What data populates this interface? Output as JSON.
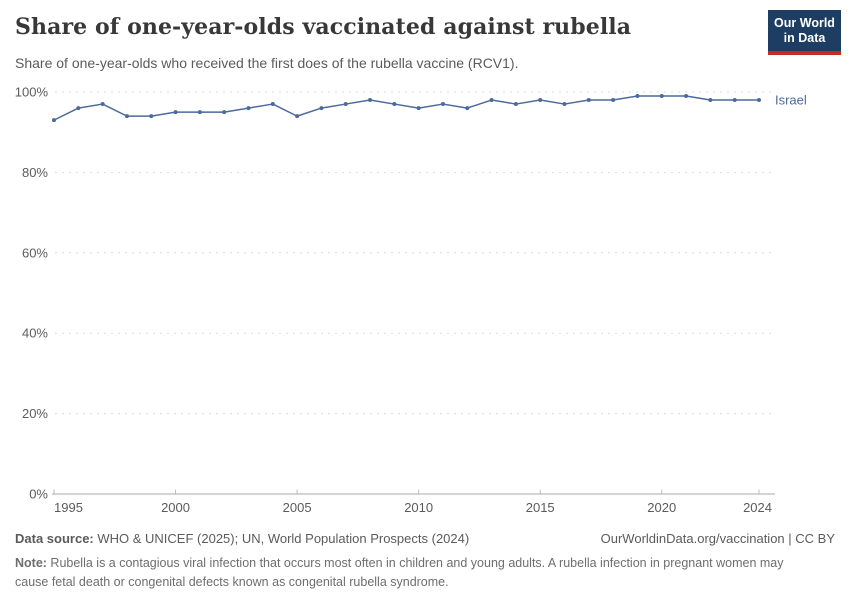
{
  "header": {
    "title": "Share of one-year-olds vaccinated against rubella",
    "subtitle": "Share of one-year-olds who received the first does of the rubella vaccine (RCV1).",
    "logo": {
      "line1": "Our World",
      "line2": "in Data"
    }
  },
  "chart_data": {
    "type": "line",
    "title": "Share of one-year-olds vaccinated against rubella",
    "x": [
      1995,
      1996,
      1997,
      1998,
      1999,
      2000,
      2001,
      2002,
      2003,
      2004,
      2005,
      2006,
      2007,
      2008,
      2009,
      2010,
      2011,
      2012,
      2013,
      2014,
      2015,
      2016,
      2017,
      2018,
      2019,
      2020,
      2021,
      2022,
      2023,
      2024
    ],
    "series": [
      {
        "name": "Israel",
        "color": "#4C6A9C",
        "values": [
          93,
          96,
          97,
          94,
          94,
          95,
          95,
          95,
          96,
          97,
          94,
          96,
          97,
          98,
          97,
          96,
          97,
          96,
          98,
          97,
          98,
          97,
          98,
          98,
          99,
          99,
          99,
          98,
          98,
          98
        ]
      }
    ],
    "ylim": [
      0,
      100
    ],
    "yticks": [
      0,
      20,
      40,
      60,
      80,
      100
    ],
    "ytick_labels": [
      "0%",
      "20%",
      "40%",
      "60%",
      "80%",
      "100%"
    ],
    "xticks": [
      1995,
      2000,
      2005,
      2010,
      2015,
      2020,
      2024
    ],
    "grid": "horizontal-dashed",
    "legend": "end-of-line-label",
    "xlabel": "",
    "ylabel": ""
  },
  "colors": {
    "line": "#4C6A9C",
    "grid": "#dadada",
    "axis": "#a9a9a9",
    "tick_text": "#5b5b5b",
    "logo_bg": "#1d3d63",
    "logo_red": "#c22b26"
  },
  "footer": {
    "datasource_label": "Data source:",
    "datasource_text": " WHO & UNICEF (2025); UN, World Population Prospects (2024)",
    "url_text": "OurWorldinData.org/vaccination",
    "separator": " | ",
    "license_text": "CC BY",
    "note_label": "Note:",
    "note_text": " Rubella is a contagious viral infection that occurs most often in children and young adults. A rubella infection in pregnant women may cause fetal death or congenital defects known as congenital rubella syndrome."
  }
}
